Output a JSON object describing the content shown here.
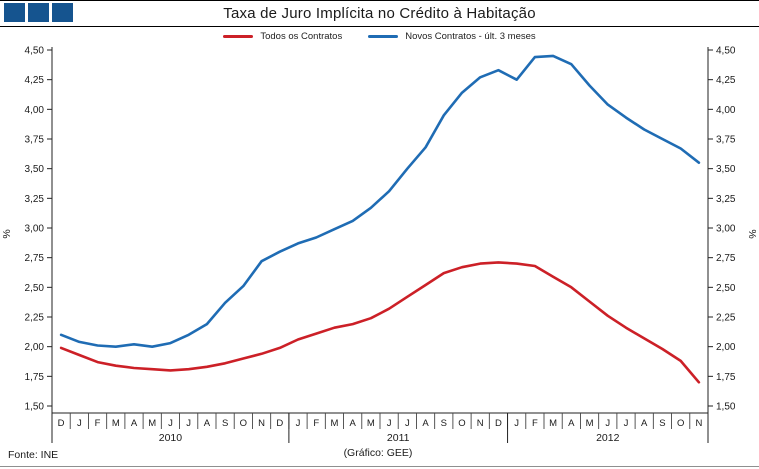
{
  "header": {
    "title": "Taxa de Juro Implícita no Crédito à Habitação",
    "logo_squares": 3,
    "logo_color": "#15548f"
  },
  "legend": [
    {
      "label": "Todos os Contratos",
      "color": "#cc2027"
    },
    {
      "label": "Novos Contratos - últ. 3 meses",
      "color": "#1f6cb4"
    }
  ],
  "footer": {
    "source": "Fonte: INE",
    "credit": "(Gráfico: GEE)"
  },
  "chart_data": {
    "type": "line",
    "title": "Taxa de Juro Implícita no Crédito à Habitação",
    "ylabel_left": "%",
    "ylabel_right": "%",
    "ylim": [
      1.5,
      4.5
    ],
    "ytick_step": 0.25,
    "ytick_labels": [
      "1,50",
      "1,75",
      "2,00",
      "2,25",
      "2,50",
      "2,75",
      "3,00",
      "3,25",
      "3,50",
      "3,75",
      "4,00",
      "4,25",
      "4,50"
    ],
    "grid": false,
    "legend_position": "top",
    "categories": [
      "D",
      "J",
      "F",
      "M",
      "A",
      "M",
      "J",
      "J",
      "A",
      "S",
      "O",
      "N",
      "D",
      "J",
      "F",
      "M",
      "A",
      "M",
      "J",
      "J",
      "A",
      "S",
      "O",
      "N",
      "D",
      "J",
      "F",
      "M",
      "A",
      "M",
      "J",
      "J",
      "A",
      "S",
      "O",
      "N"
    ],
    "year_groups": [
      {
        "label": "2010",
        "start": 0,
        "end": 12
      },
      {
        "label": "2011",
        "start": 13,
        "end": 24
      },
      {
        "label": "2012",
        "start": 25,
        "end": 35
      }
    ],
    "series": [
      {
        "name": "Todos os Contratos",
        "color": "#cc2027",
        "values": [
          1.99,
          1.93,
          1.87,
          1.84,
          1.82,
          1.81,
          1.8,
          1.81,
          1.83,
          1.86,
          1.9,
          1.94,
          1.99,
          2.06,
          2.11,
          2.16,
          2.19,
          2.24,
          2.32,
          2.42,
          2.52,
          2.62,
          2.67,
          2.7,
          2.71,
          2.7,
          2.68,
          2.59,
          2.5,
          2.38,
          2.26,
          2.16,
          2.07,
          1.98,
          1.88,
          1.7
        ]
      },
      {
        "name": "Novos Contratos - últ. 3 meses",
        "color": "#1f6cb4",
        "values": [
          2.1,
          2.04,
          2.01,
          2.0,
          2.02,
          2.0,
          2.03,
          2.1,
          2.19,
          2.37,
          2.51,
          2.72,
          2.8,
          2.87,
          2.92,
          2.99,
          3.06,
          3.17,
          3.31,
          3.5,
          3.68,
          3.95,
          4.14,
          4.27,
          4.33,
          4.25,
          4.44,
          4.45,
          4.38,
          4.2,
          4.04,
          3.93,
          3.83,
          3.75,
          3.67,
          3.55
        ]
      }
    ]
  }
}
